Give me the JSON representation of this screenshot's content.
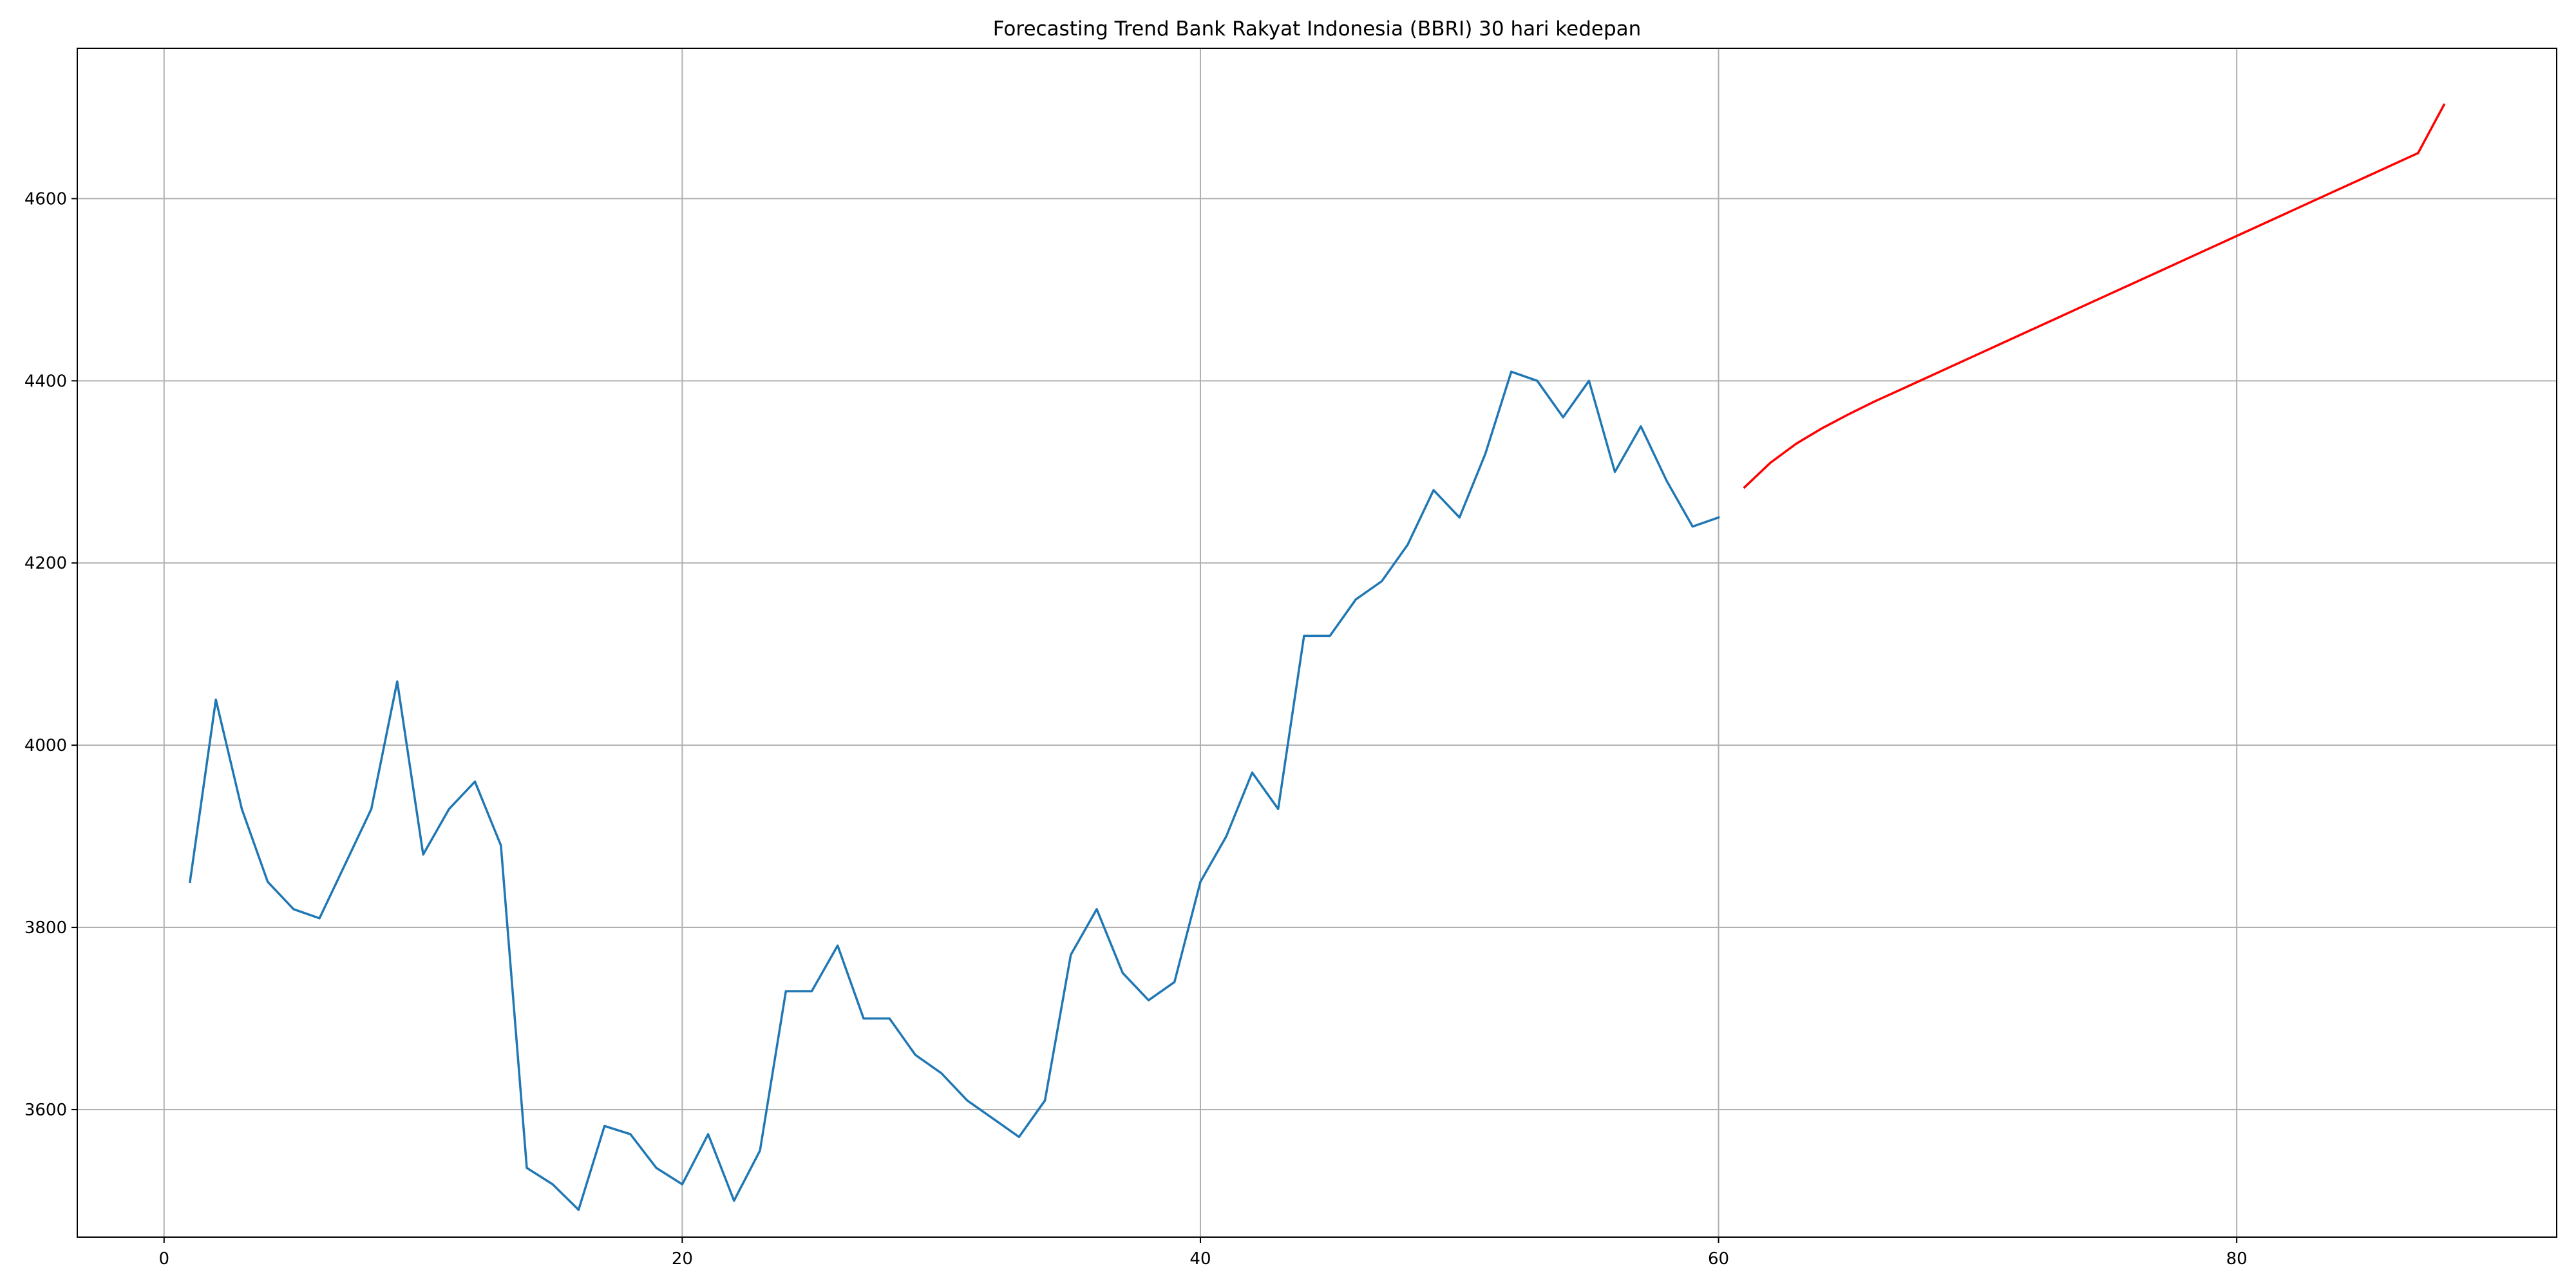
{
  "chart_data": {
    "type": "line",
    "title": "Forecasting Trend Bank Rakyat Indonesia (BBRI) 30 hari kedepan",
    "xlabel": "",
    "ylabel": "",
    "xlim": [
      -3.35,
      92.35
    ],
    "ylim": [
      3460,
      4765
    ],
    "x_ticks": [
      0,
      20,
      40,
      60,
      80
    ],
    "y_ticks": [
      3600,
      3800,
      4000,
      4200,
      4400,
      4600
    ],
    "grid": true,
    "series": [
      {
        "color": "#1f77b4",
        "x": [
          1,
          2,
          3,
          4,
          5,
          6,
          7,
          8,
          9,
          10,
          11,
          12,
          13,
          14,
          15,
          16,
          17,
          18,
          19,
          20,
          21,
          22,
          23,
          24,
          25,
          26,
          27,
          28,
          29,
          30,
          31,
          32,
          33,
          34,
          35,
          36,
          37,
          38,
          39,
          40,
          41,
          42,
          43,
          44,
          45,
          46,
          47,
          48,
          49,
          50,
          51,
          52,
          53,
          54,
          55,
          56,
          57,
          58,
          59,
          60
        ],
        "y": [
          3850,
          4050,
          3930,
          3850,
          3820,
          3810,
          3870,
          3930,
          4070,
          3880,
          3930,
          3960,
          3890,
          3536,
          3518,
          3490,
          3582,
          3573,
          3536,
          3518,
          3573,
          3500,
          3555,
          3730,
          3730,
          3780,
          3700,
          3700,
          3660,
          3640,
          3610,
          3590,
          3570,
          3610,
          3770,
          3820,
          3750,
          3720,
          3740,
          3850,
          3900,
          3970,
          3930,
          4120,
          4120,
          4160,
          4180,
          4220,
          4280,
          4250,
          4320,
          4410,
          4400,
          4360,
          4400,
          4300,
          4350,
          4290,
          4240,
          4250
        ]
      },
      {
        "color": "#ff0000",
        "x": [
          61,
          62,
          63,
          64,
          65,
          66,
          67,
          68,
          69,
          70,
          71,
          72,
          73,
          74,
          75,
          76,
          77,
          78,
          79,
          80,
          81,
          82,
          83,
          84,
          85,
          86,
          87,
          88
        ],
        "y": [
          4283,
          4310,
          4331,
          4348,
          4363,
          4377,
          4390,
          4403,
          4416,
          4429,
          4442,
          4455,
          4468,
          4481,
          4494,
          4507,
          4520,
          4533,
          4546,
          4559,
          4572,
          4585,
          4598,
          4611,
          4624,
          4637,
          4650,
          4703
        ]
      }
    ]
  }
}
